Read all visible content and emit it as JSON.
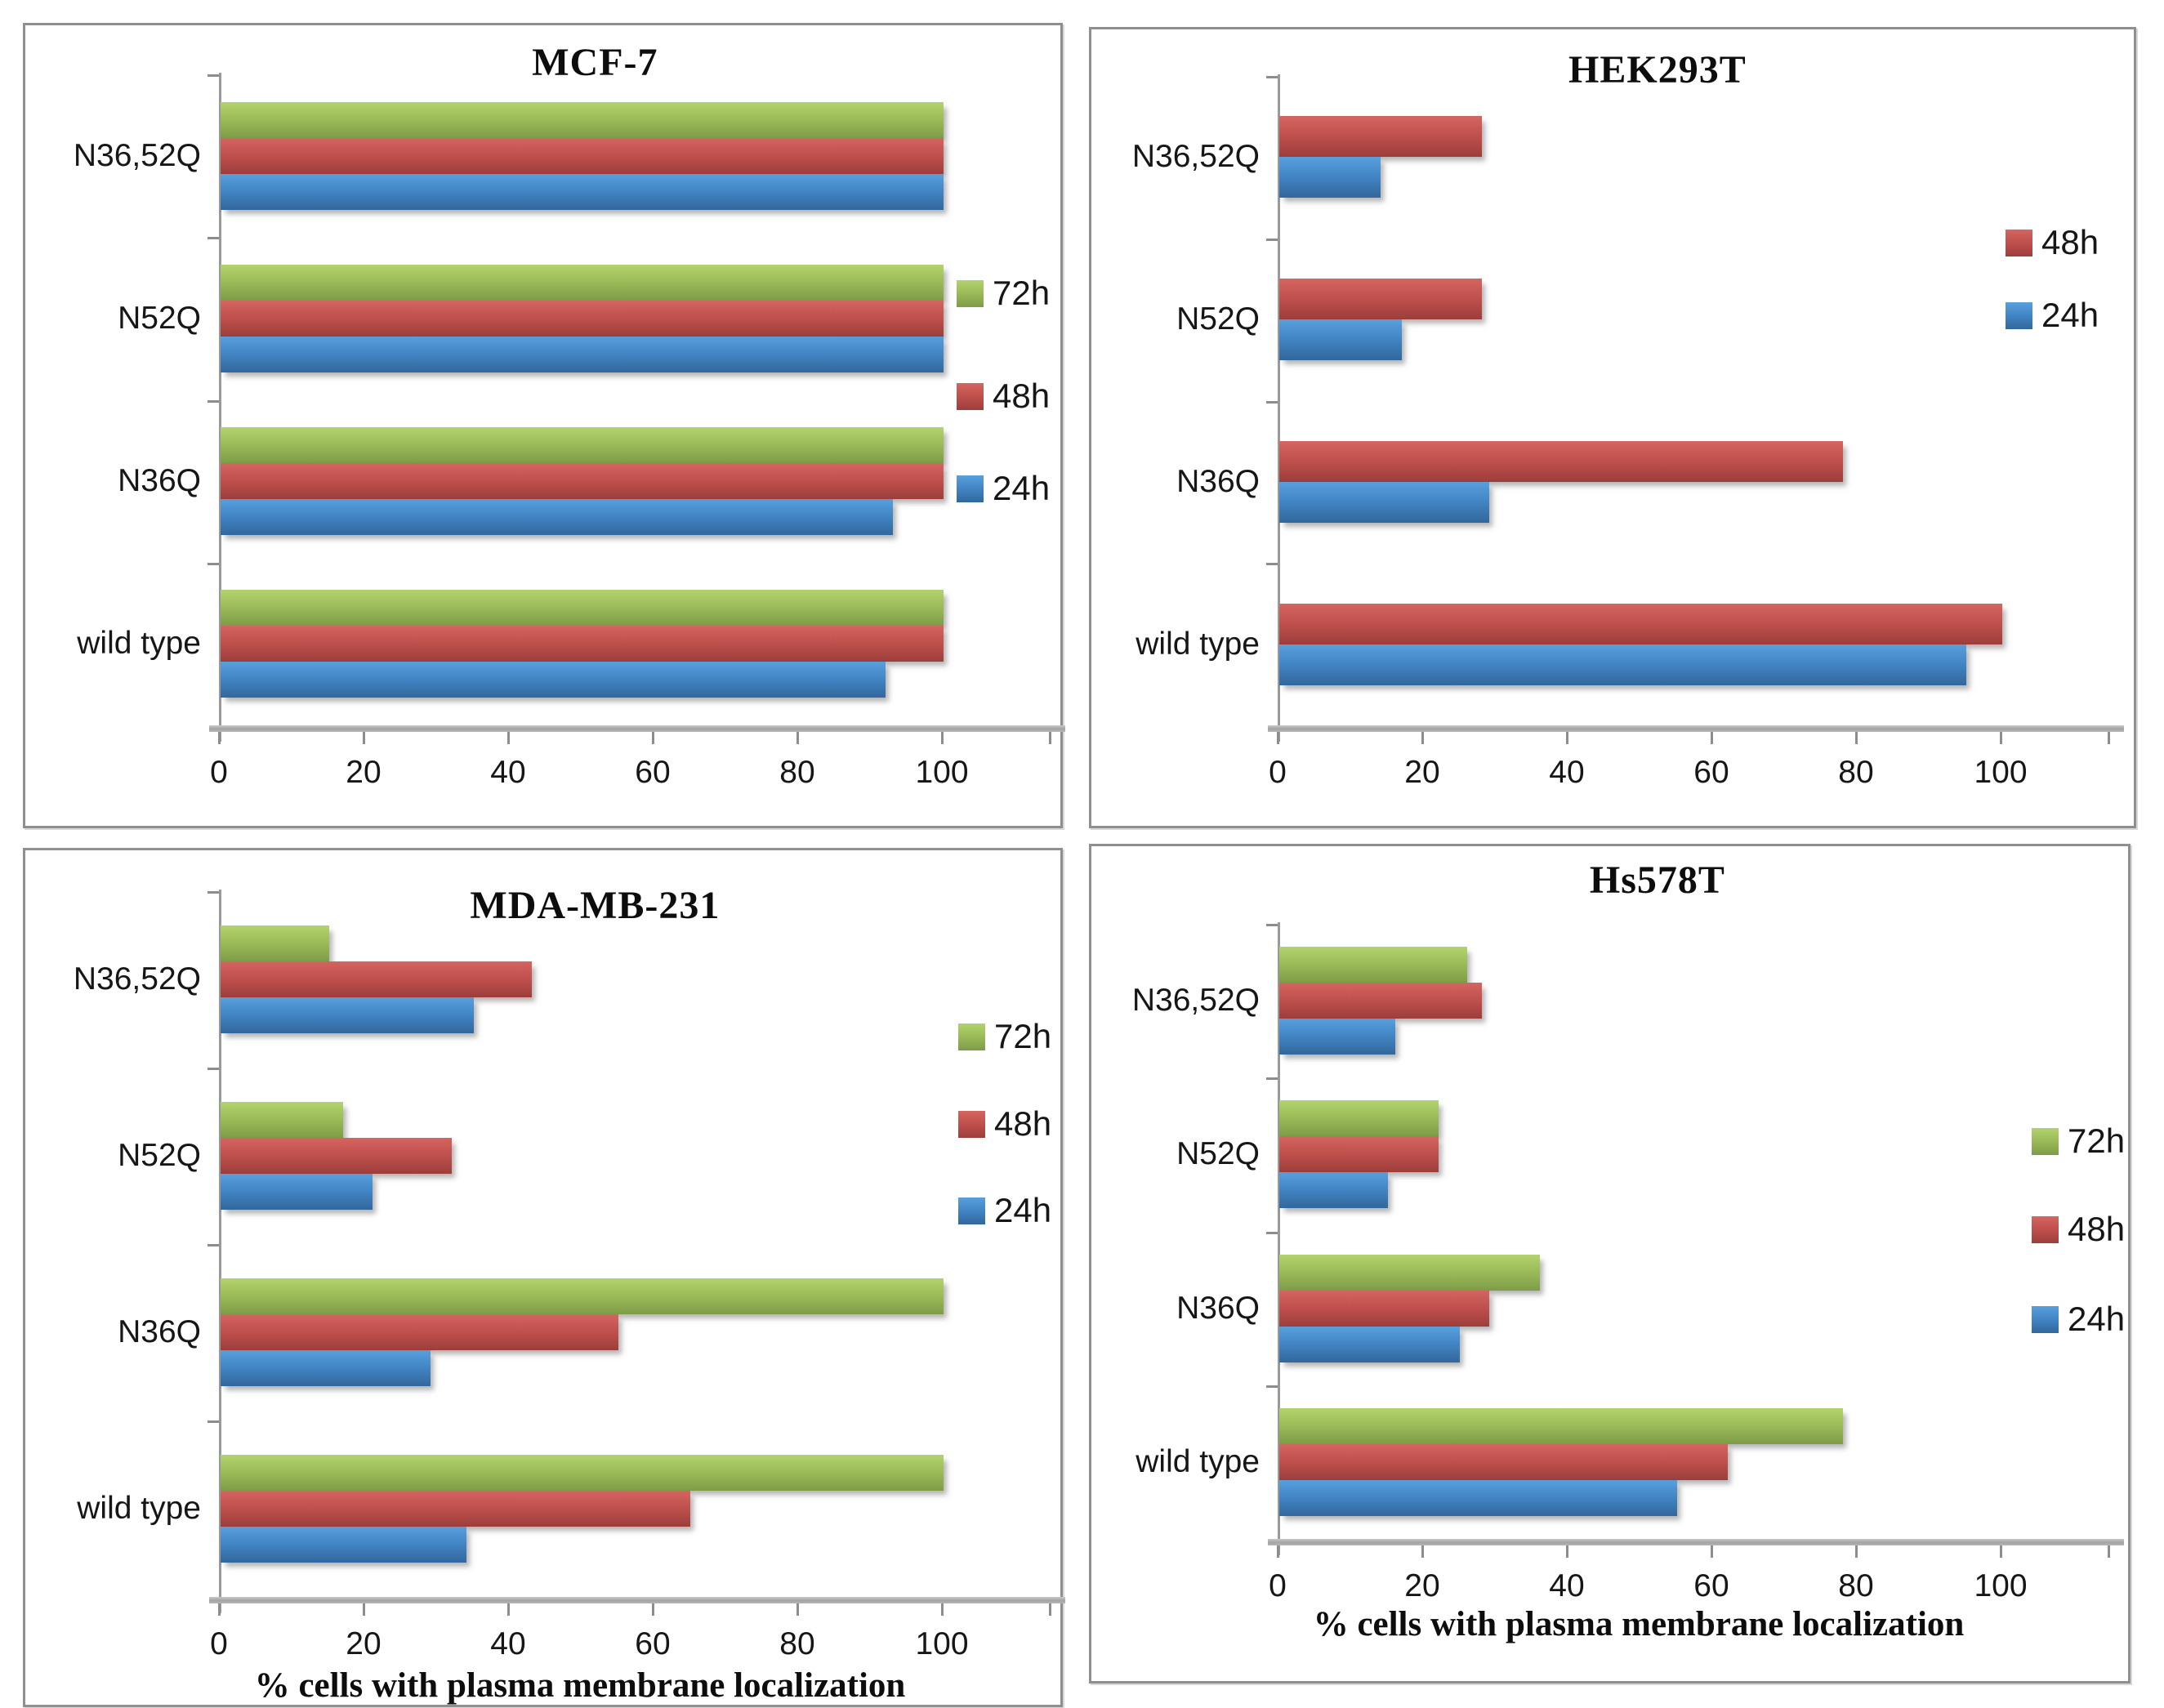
{
  "figure": {
    "description": "Four horizontal grouped bar charts of % cells with plasma membrane localization",
    "x_axis_label": "% cells with plasma membrane localization"
  },
  "colors": {
    "series": {
      "72h": {
        "base": "#9BBB59",
        "light": "#B2D36C",
        "dark": "#7E9C47"
      },
      "48h": {
        "base": "#C0504D",
        "light": "#D4655F",
        "dark": "#9C3E3B"
      },
      "24h": {
        "base": "#4285C5",
        "light": "#58A0DC",
        "dark": "#32679B"
      }
    },
    "axis_line": "#A3A3A3",
    "tick": "#8D8D8D",
    "text": "#161616"
  },
  "chart_data": [
    {
      "id": "mcf7",
      "type": "bar",
      "orientation": "horizontal",
      "title": "MCF-7",
      "categories": [
        "N36,52Q",
        "N52Q",
        "N36Q",
        "wild type"
      ],
      "series": [
        {
          "name": "72h",
          "color": "#9BBB59",
          "values": [
            100,
            100,
            100,
            100
          ]
        },
        {
          "name": "48h",
          "color": "#C0504D",
          "values": [
            100,
            100,
            100,
            100
          ]
        },
        {
          "name": "24h",
          "color": "#4285C5",
          "values": [
            100,
            100,
            93,
            92
          ]
        }
      ],
      "xlabel": "",
      "xlim": [
        0,
        115
      ],
      "xticks": [
        0,
        20,
        40,
        60,
        80,
        100
      ],
      "grid": false,
      "legend_position": "right-middle"
    },
    {
      "id": "hek293t",
      "type": "bar",
      "orientation": "horizontal",
      "title": "HEK293T",
      "categories": [
        "N36,52Q",
        "N52Q",
        "N36Q",
        "wild type"
      ],
      "series": [
        {
          "name": "48h",
          "color": "#C0504D",
          "values": [
            28,
            28,
            78,
            100
          ]
        },
        {
          "name": "24h",
          "color": "#4285C5",
          "values": [
            14,
            17,
            29,
            95
          ]
        }
      ],
      "xlabel": "",
      "xlim": [
        0,
        115
      ],
      "xticks": [
        0,
        20,
        40,
        60,
        80,
        100
      ],
      "grid": false,
      "legend_position": "right-upper"
    },
    {
      "id": "mdamb231",
      "type": "bar",
      "orientation": "horizontal",
      "title": "MDA-MB-231",
      "categories": [
        "N36,52Q",
        "N52Q",
        "N36Q",
        "wild type"
      ],
      "series": [
        {
          "name": "72h",
          "color": "#9BBB59",
          "values": [
            15,
            17,
            100,
            100
          ]
        },
        {
          "name": "48h",
          "color": "#C0504D",
          "values": [
            43,
            32,
            55,
            65
          ]
        },
        {
          "name": "24h",
          "color": "#4285C5",
          "values": [
            35,
            21,
            29,
            34
          ]
        }
      ],
      "xlabel": "% cells with plasma membrane localization",
      "xlim": [
        0,
        115
      ],
      "xticks": [
        0,
        20,
        40,
        60,
        80,
        100
      ],
      "grid": false,
      "legend_position": "right-middle"
    },
    {
      "id": "hs578t",
      "type": "bar",
      "orientation": "horizontal",
      "title": "Hs578T",
      "categories": [
        "N36,52Q",
        "N52Q",
        "N36Q",
        "wild type"
      ],
      "series": [
        {
          "name": "72h",
          "color": "#9BBB59",
          "values": [
            26,
            22,
            36,
            78
          ]
        },
        {
          "name": "48h",
          "color": "#C0504D",
          "values": [
            28,
            22,
            29,
            62
          ]
        },
        {
          "name": "24h",
          "color": "#4285C5",
          "values": [
            16,
            15,
            25,
            55
          ]
        }
      ],
      "xlabel": "% cells with plasma membrane localization",
      "xlim": [
        0,
        115
      ],
      "xticks": [
        0,
        20,
        40,
        60,
        80,
        100
      ],
      "grid": false,
      "legend_position": "right-lower"
    }
  ]
}
